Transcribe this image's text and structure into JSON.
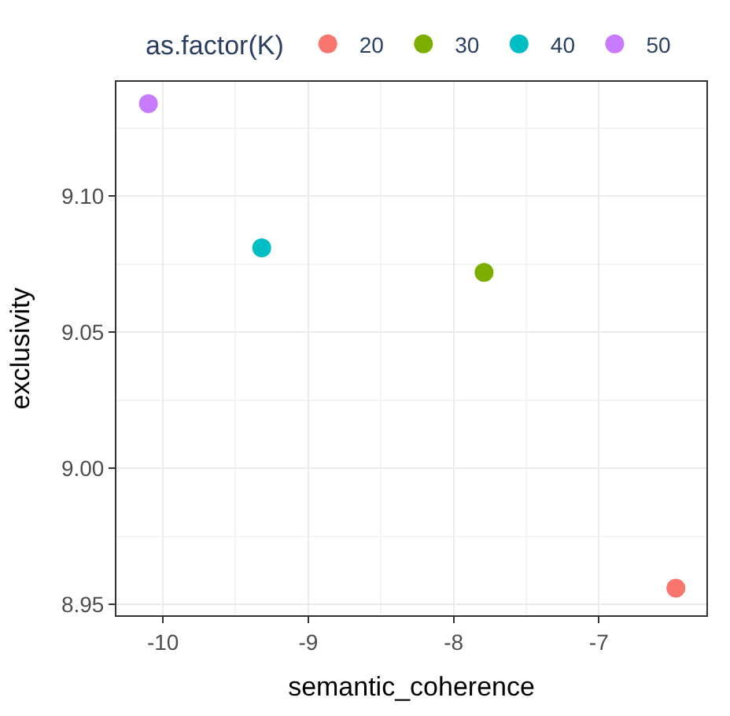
{
  "chart_data": {
    "type": "scatter",
    "xlabel": "semantic_coherence",
    "ylabel": "exclusivity",
    "legend_title": "as.factor(K)",
    "legend": "top",
    "grid": true,
    "marker": "circle",
    "xlim": [
      -10.32,
      -6.26
    ],
    "xticks": [
      -10,
      -9,
      -8,
      -7
    ],
    "ylim": [
      8.946,
      9.142
    ],
    "yticks": [
      {
        "value": 8.95,
        "label": "8.95"
      },
      {
        "value": 9.0,
        "label": "9.00"
      },
      {
        "value": 9.05,
        "label": "9.05"
      },
      {
        "value": 9.1,
        "label": "9.10"
      }
    ],
    "series": [
      {
        "name": "20",
        "color": "#f8766d",
        "x": [
          -6.47
        ],
        "values": [
          8.956
        ]
      },
      {
        "name": "30",
        "color": "#7cae00",
        "x": [
          -7.79
        ],
        "values": [
          9.072
        ]
      },
      {
        "name": "40",
        "color": "#00bfc4",
        "x": [
          -9.32
        ],
        "values": [
          9.081
        ]
      },
      {
        "name": "50",
        "color": "#c77cff",
        "x": [
          -10.1
        ],
        "values": [
          9.134
        ]
      }
    ]
  }
}
